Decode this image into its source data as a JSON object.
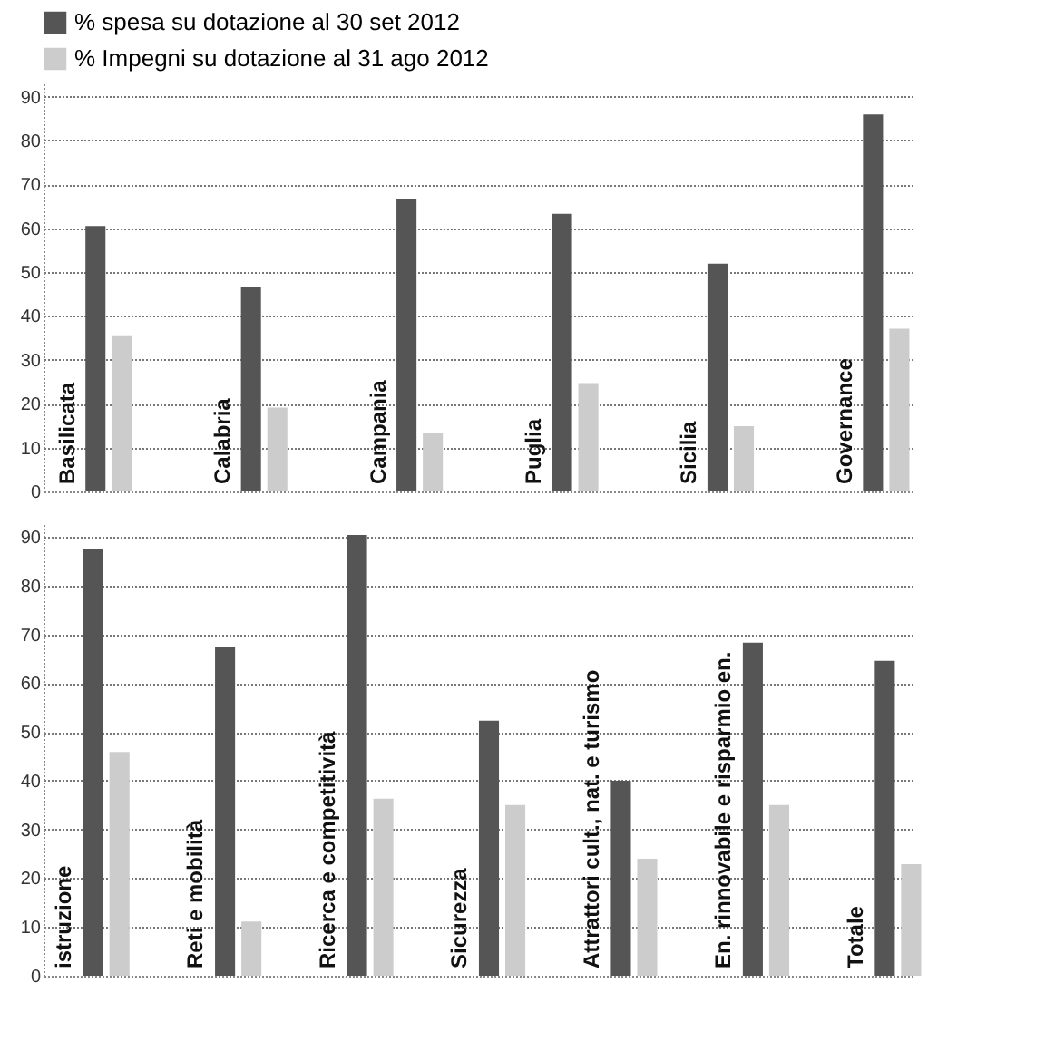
{
  "chart_data": [
    {
      "type": "bar",
      "categories": [
        "Basilicata",
        "Calabria",
        "Campania",
        "Puglia",
        "Sicilia",
        "Governance"
      ],
      "series": [
        {
          "name": "% spesa su dotazione al 30 set 2012",
          "color": "#555555",
          "values": [
            60.5,
            46.7,
            66.7,
            63.3,
            51.9,
            85.9
          ]
        },
        {
          "name": "% Impegni su dotazione al 31 ago 2012",
          "color": "#cccccc",
          "values": [
            35.6,
            19.1,
            13.3,
            24.7,
            14.9,
            37.1
          ]
        }
      ],
      "ylim": [
        0,
        93
      ],
      "yticks": [
        0,
        10,
        20,
        30,
        40,
        50,
        60,
        70,
        80,
        90
      ],
      "grid": "y",
      "legend": "top left",
      "tick_labels": "y"
    },
    {
      "type": "bar",
      "categories": [
        "istruzione",
        "Reti e mobilità",
        "Ricerca e competitività",
        "Sicurezza",
        "Attrattori cult., nat. e turismo",
        "En. rinnovabile e risparmio en.",
        "Totale"
      ],
      "series": [
        {
          "name": "% spesa su dotazione al 30 set 2012",
          "color": "#555555",
          "values": [
            87.6,
            67.4,
            90.4,
            52.3,
            40,
            68.3,
            64.6
          ]
        },
        {
          "name": "% Impegni su dotazione al 31 ago 2012",
          "color": "#cccccc",
          "values": [
            45.9,
            11.1,
            36.3,
            35,
            24,
            35,
            22.9
          ]
        }
      ],
      "ylim": [
        0,
        93
      ],
      "yticks": [
        0,
        10,
        20,
        30,
        40,
        50,
        60,
        70,
        80,
        90
      ],
      "grid": "y",
      "legend": "top left",
      "tick_labels": "y"
    }
  ]
}
